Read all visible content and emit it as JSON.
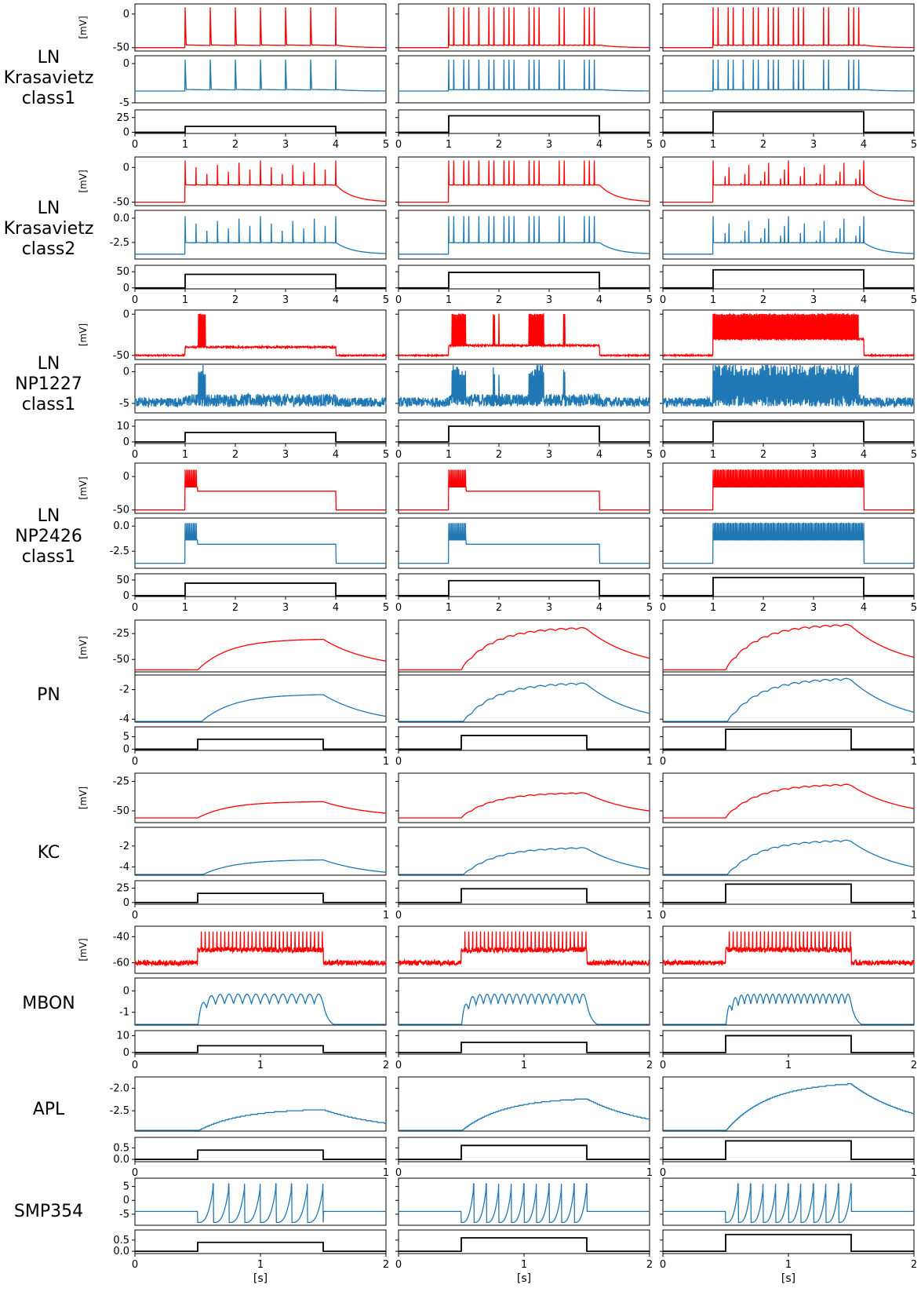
{
  "chart_data": {
    "type": "line",
    "colors": {
      "trace_a": "#ff0000",
      "trace_b": "#1f77b4",
      "stimulus": "#000000"
    },
    "x_unit_label": "[s]",
    "y_unit_label": "[mV]",
    "rows": [
      {
        "label": [
          "LN",
          "Krasavietz",
          "class1"
        ],
        "xlim": [
          0,
          5
        ],
        "xticks": [
          "0",
          "1",
          "2",
          "3",
          "4",
          "5"
        ],
        "stim_on": [
          1,
          4
        ],
        "panels": [
          {
            "type": "spiking",
            "ylim": [
              -55,
              15
            ],
            "yticks": [
              "0",
              "-50"
            ],
            "ylabel": "[mV]",
            "series": [
              {
                "name": "red",
                "base": -50,
                "plateau": -46,
                "top": 10,
                "spikes": [
                  6,
                  30,
                  30
                ]
              },
              {
                "name": "blue",
                "base": -3.5,
                "plateau": -3.3,
                "top": 0.5,
                "spikes": [
                  6,
                  30,
                  30
                ]
              }
            ]
          },
          {
            "type": "spiking",
            "ylim": [
              -5,
              1
            ],
            "yticks": [
              "0",
              "-5"
            ]
          },
          {
            "type": "stim",
            "ylim": [
              -2,
              38
            ],
            "yticks": [
              "25",
              "0"
            ],
            "amps": [
              10,
              28,
              35
            ]
          }
        ]
      },
      {
        "label": [
          "LN",
          "Krasavietz",
          "class2"
        ],
        "xlim": [
          0,
          5
        ],
        "xticks": [
          "0",
          "1",
          "2",
          "3",
          "4",
          "5"
        ],
        "stim_on": [
          1,
          4
        ],
        "panels": [
          {
            "type": "spiking",
            "ylim": [
              -55,
              15
            ],
            "yticks": [
              "0",
              "-50"
            ],
            "ylabel": "[mV]",
            "series": [
              {
                "name": "red",
                "base": -50,
                "plateau": -25,
                "top": 10,
                "spikes": [
                  14,
                  30,
                  38
                ]
              },
              {
                "name": "blue",
                "base": -3.7,
                "plateau": -2.5,
                "top": 0.2,
                "spikes": [
                  14,
                  30,
                  38
                ]
              }
            ]
          },
          {
            "type": "spiking",
            "ylim": [
              -4.2,
              0.8
            ],
            "yticks": [
              "0.0",
              "-2.5"
            ]
          },
          {
            "type": "stim",
            "ylim": [
              -3,
              70
            ],
            "yticks": [
              "50",
              "0"
            ],
            "amps": [
              42,
              48,
              56
            ]
          }
        ]
      },
      {
        "label": [
          "LN",
          "NP1227",
          "class1"
        ],
        "xlim": [
          0,
          5
        ],
        "xticks": [
          "0",
          "1",
          "2",
          "3",
          "4",
          "5"
        ],
        "stim_on": [
          1,
          4
        ],
        "panels": [
          {
            "type": "bursting",
            "ylim": [
              -55,
              5
            ],
            "yticks": [
              "0",
              "-50"
            ],
            "ylabel": "[mV]",
            "series": [
              {
                "name": "red",
                "base": -50,
                "plateau": -40,
                "top": 0,
                "bursts": [
                  [
                    1.25,
                    1.42
                  ]
                ],
                "singles": []
              },
              {
                "name": "red",
                "base": -50,
                "plateau": -38,
                "top": 0,
                "bursts": [
                  [
                    1.05,
                    1.35
                  ],
                  [
                    2.6,
                    2.9
                  ]
                ],
                "singles": [
                  1.9,
                  2.0,
                  3.3
                ]
              },
              {
                "name": "red",
                "base": -50,
                "plateau": -30,
                "top": 0,
                "bursts": [
                  [
                    1.0,
                    3.9
                  ]
                ],
                "singles": []
              }
            ]
          },
          {
            "type": "bursting",
            "ylim": [
              -6.5,
              1.2
            ],
            "yticks": [
              "0",
              "-5"
            ]
          },
          {
            "type": "stim",
            "ylim": [
              -1,
              14
            ],
            "yticks": [
              "10",
              "0"
            ],
            "amps": [
              6,
              10,
              13
            ]
          }
        ]
      },
      {
        "label": [
          "LN",
          "NP2426",
          "class1"
        ],
        "xlim": [
          0,
          5
        ],
        "xticks": [
          "0",
          "1",
          "2",
          "3",
          "4",
          "5"
        ],
        "stim_on": [
          1,
          4
        ],
        "panels": [
          {
            "type": "adapting",
            "ylim": [
              -55,
              20
            ],
            "yticks": [
              "0",
              "-50"
            ],
            "ylabel": "[mV]"
          },
          {
            "type": "adapting",
            "ylim": [
              -4.2,
              0.8
            ],
            "yticks": [
              "0.0",
              "-2.5"
            ]
          },
          {
            "type": "stim",
            "ylim": [
              -3,
              70
            ],
            "yticks": [
              "50",
              "0"
            ],
            "amps": [
              40,
              48,
              58
            ]
          }
        ]
      },
      {
        "label": [
          "PN"
        ],
        "xlim": [
          0,
          1
        ],
        "xticks": [
          "0",
          "1"
        ],
        "stim_on": [
          0.25,
          0.75
        ],
        "panels": [
          {
            "type": "smooth",
            "ylim": [
              -65,
              -12
            ],
            "yticks": [
              "-25",
              "-50"
            ],
            "ylabel": "[mV]",
            "base": -60,
            "peaks": [
              -30,
              -20,
              -17
            ]
          },
          {
            "type": "smooth",
            "ylim": [
              -4.2,
              -0.8
            ],
            "yticks": [
              "-2",
              "-4"
            ],
            "base": -4.4,
            "peaks": [
              -2.3,
              -1.6,
              -1.3
            ]
          },
          {
            "type": "stim",
            "ylim": [
              -0.5,
              9
            ],
            "yticks": [
              "5",
              "0"
            ],
            "amps": [
              4,
              5.5,
              8
            ]
          }
        ]
      },
      {
        "label": [
          "KC"
        ],
        "xlim": [
          0,
          1
        ],
        "xticks": [
          "0",
          "1"
        ],
        "stim_on": [
          0.25,
          0.75
        ],
        "panels": [
          {
            "type": "smooth",
            "ylim": [
              -60,
              -18
            ],
            "yticks": [
              "-25",
              "-50"
            ],
            "ylabel": "[mV]",
            "base": -56,
            "peaks": [
              -42,
              -35,
              -28
            ]
          },
          {
            "type": "smooth",
            "ylim": [
              -4.8,
              -0.2
            ],
            "yticks": [
              "-2",
              "-4"
            ],
            "base": -5,
            "peaks": [
              -3.3,
              -2.2,
              -1.5
            ]
          },
          {
            "type": "stim",
            "ylim": [
              -3,
              38
            ],
            "yticks": [
              "25",
              "0"
            ],
            "amps": [
              16,
              24,
              32
            ]
          }
        ]
      },
      {
        "label": [
          "MBON"
        ],
        "xlim": [
          0,
          2
        ],
        "xticks": [
          "0",
          "1",
          "2"
        ],
        "stim_on": [
          0.5,
          1.5
        ],
        "panels": [
          {
            "type": "noisy",
            "ylim": [
              -68,
              -32
            ],
            "yticks": [
              "-40",
              "-60"
            ],
            "ylabel": "[mV]",
            "base": -60,
            "plateau": -50
          },
          {
            "type": "oscill",
            "ylim": [
              -1.6,
              0.6
            ],
            "yticks": [
              "0",
              "-1"
            ],
            "base": -1.7,
            "plateau": -0.6
          },
          {
            "type": "stim",
            "ylim": [
              -1,
              13
            ],
            "yticks": [
              "10",
              "0"
            ],
            "amps": [
              4,
              6,
              10
            ]
          }
        ]
      },
      {
        "label": [
          "APL"
        ],
        "xlim": [
          0,
          1
        ],
        "xticks": [
          "0",
          "1"
        ],
        "stim_on": [
          0.25,
          0.75
        ],
        "panels": [
          {
            "type": "stair",
            "ylim": [
              -2.95,
              -1.75
            ],
            "yticks": [
              "-2.0",
              "-2.5"
            ],
            "base": -2.95,
            "peaks": [
              -2.45,
              -2.2,
              -1.85
            ]
          },
          {
            "type": "stim",
            "ylim": [
              -0.1,
              0.95
            ],
            "yticks": [
              "0.5",
              "0.0"
            ],
            "amps": [
              0.4,
              0.6,
              0.8
            ]
          }
        ]
      },
      {
        "label": [
          "SMP354"
        ],
        "xlim": [
          0,
          2
        ],
        "xticks": [
          "0",
          "1",
          "2"
        ],
        "stim_on": [
          0.5,
          1.5
        ],
        "panels": [
          {
            "type": "relax",
            "ylim": [
              -9,
              8
            ],
            "yticks": [
              "5",
              "0",
              "-5"
            ],
            "base": -4,
            "spikes": [
              8,
              10,
              10
            ]
          },
          {
            "type": "stim",
            "ylim": [
              -0.1,
              0.95
            ],
            "yticks": [
              "0.5",
              "0.0"
            ],
            "amps": [
              0.4,
              0.6,
              0.75
            ]
          }
        ]
      }
    ]
  }
}
